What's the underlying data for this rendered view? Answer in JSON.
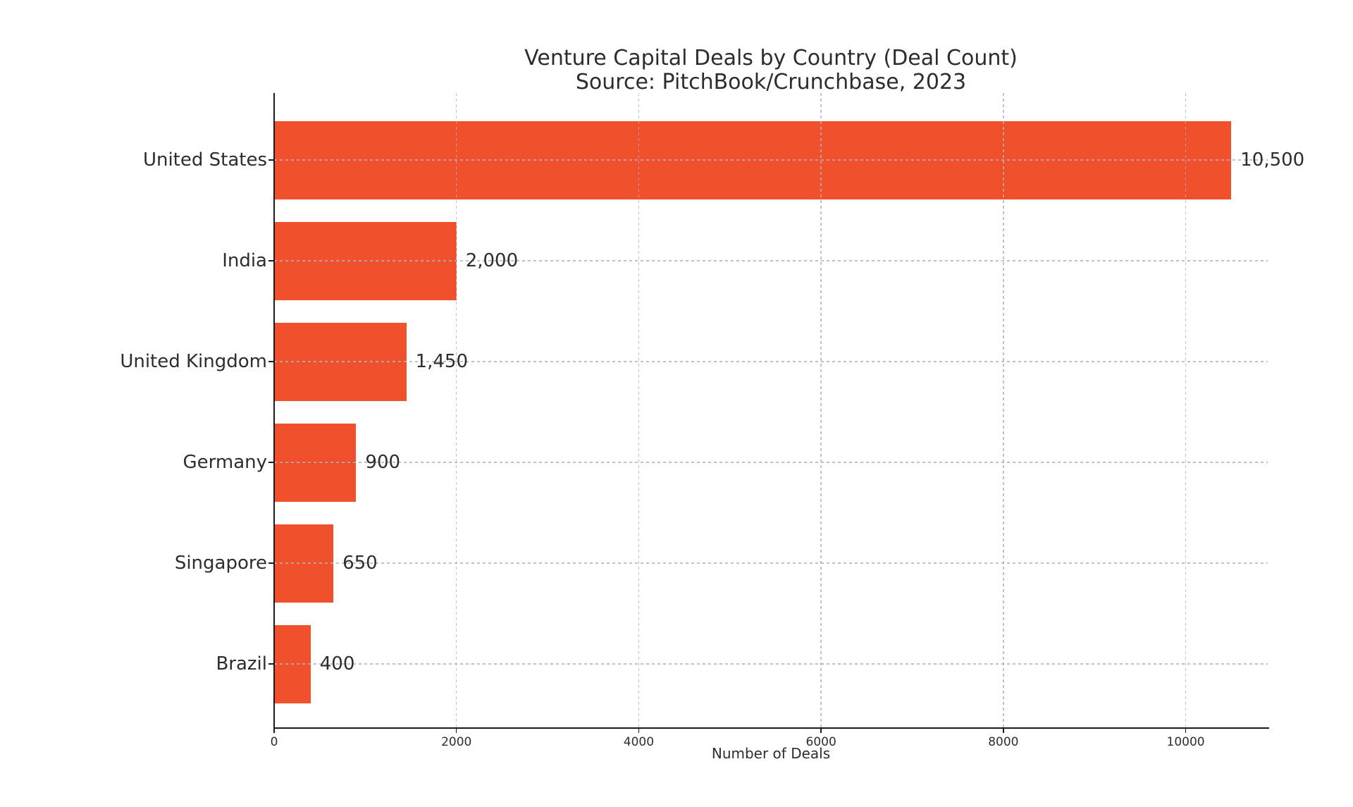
{
  "chart_data": {
    "type": "bar",
    "orientation": "horizontal",
    "title": "Venture Capital Deals by Country (Deal Count)",
    "subtitle": "Source: PitchBook/Crunchbase, 2023",
    "xlabel": "Number of Deals",
    "ylabel": "",
    "categories": [
      "United States",
      "India",
      "United Kingdom",
      "Germany",
      "Singapore",
      "Brazil"
    ],
    "values": [
      10500,
      2000,
      1450,
      900,
      650,
      400
    ],
    "value_labels": [
      "10,500",
      "2,000",
      "1,450",
      "900",
      "650",
      "400"
    ],
    "xlim": [
      0,
      10900
    ],
    "xticks": [
      0,
      2000,
      4000,
      6000,
      8000,
      10000
    ],
    "xtick_labels": [
      "0",
      "2000",
      "4000",
      "6000",
      "8000",
      "10000"
    ],
    "grid": true,
    "grid_style": "dashed",
    "legend": null,
    "bar_color": "#F1502D",
    "text_color": "#2d2d2d",
    "axis_color": "#1b1b1b",
    "grid_color": "#b2b2b2"
  }
}
